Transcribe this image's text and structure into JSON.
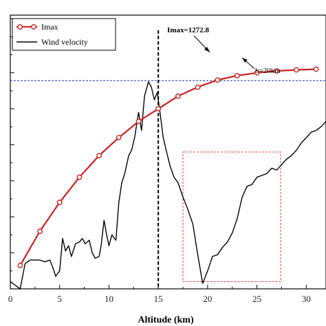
{
  "chart_data": {
    "type": "line",
    "title": "",
    "xlabel": "Altitude (km)",
    "ylabel": "",
    "xlim": [
      0,
      32
    ],
    "ylim": [
      0,
      7.6
    ],
    "xticks": [
      0,
      5,
      10,
      15,
      20,
      25,
      30
    ],
    "xtick_labels": [
      "0",
      "5",
      "10",
      "15",
      "20",
      "25",
      "30"
    ],
    "yticks": [
      0,
      1,
      2,
      3,
      4,
      5,
      6,
      7
    ],
    "ytick_labels": [
      "",
      "",
      "",
      "",
      "",
      "",
      "",
      ""
    ],
    "legend_position": "top-left",
    "colors": {
      "imax": "#cc1f1f",
      "wind": "#000000",
      "threshold": "#1a2fb0",
      "vline": "#000000",
      "box": "#e04040"
    },
    "series": [
      {
        "name": "Imax",
        "style": "line-with-open-circles",
        "x": [
          1,
          3,
          5,
          7,
          9,
          11,
          13,
          15,
          17,
          19,
          21,
          23,
          25,
          27,
          29,
          31
        ],
        "y": [
          0.65,
          1.6,
          2.4,
          3.1,
          3.7,
          4.2,
          4.65,
          5.0,
          5.35,
          5.6,
          5.8,
          5.92,
          6.0,
          6.05,
          6.08,
          6.1
        ]
      },
      {
        "name": "Wind velocity",
        "style": "line",
        "x": [
          0,
          0.5,
          1.0,
          1.5,
          2.0,
          2.5,
          3.0,
          3.5,
          4.0,
          4.3,
          4.6,
          5.0,
          5.3,
          5.6,
          5.9,
          6.2,
          6.6,
          7.0,
          7.3,
          7.6,
          8.0,
          8.3,
          8.6,
          9.0,
          9.2,
          9.5,
          9.8,
          10.0,
          10.3,
          10.7,
          11.0,
          11.3,
          11.6,
          12.0,
          12.3,
          12.6,
          13.0,
          13.3,
          13.6,
          14.0,
          14.3,
          14.6,
          14.9,
          15.2,
          15.5,
          15.8,
          16.2,
          16.6,
          17.0,
          17.5,
          18.0,
          18.5,
          19.0,
          19.5,
          20.0,
          20.5,
          21.0,
          21.5,
          22.0,
          22.5,
          23.0,
          23.5,
          24.0,
          24.5,
          25.0,
          25.5,
          26.0,
          26.5,
          27.0,
          27.5,
          28.0,
          28.5,
          29.0,
          29.5,
          30.0,
          30.5,
          31.0,
          31.5,
          32.0
        ],
        "y": [
          0.2,
          0.1,
          0.0,
          0.7,
          0.8,
          0.8,
          0.8,
          0.75,
          0.8,
          0.6,
          0.35,
          0.5,
          1.4,
          1.05,
          1.2,
          0.9,
          1.25,
          1.3,
          1.4,
          1.25,
          1.35,
          1.0,
          0.85,
          0.9,
          1.2,
          1.9,
          1.45,
          1.2,
          1.5,
          1.35,
          2.4,
          2.95,
          3.2,
          3.7,
          3.85,
          4.2,
          4.9,
          4.4,
          5.35,
          5.75,
          5.6,
          5.25,
          5.45,
          4.85,
          4.2,
          3.85,
          3.4,
          3.1,
          2.95,
          2.55,
          2.2,
          1.8,
          0.95,
          0.15,
          0.5,
          0.9,
          0.95,
          1.15,
          1.3,
          1.55,
          1.95,
          2.55,
          2.85,
          2.9,
          3.1,
          3.15,
          3.2,
          3.35,
          3.3,
          3.45,
          3.6,
          3.7,
          3.85,
          4.05,
          4.2,
          4.35,
          4.4,
          4.5,
          4.65
        ]
      }
    ],
    "annotations": {
      "threshold_label": "h=20km",
      "imax_label": "Imax=1272.8",
      "threshold_y": 5.78,
      "vline_x": 15,
      "box": {
        "x0": 17.5,
        "x1": 27.4,
        "y0": 0.2,
        "y1": 3.8
      }
    }
  }
}
